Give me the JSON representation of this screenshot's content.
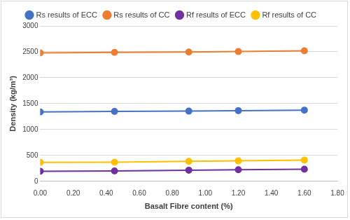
{
  "chart_data": {
    "type": "line",
    "x_label": "Basalt Fibre content (%)",
    "y_label": "Density (kg/m³)",
    "x": [
      0,
      0.45,
      0.9,
      1.2,
      1.6
    ],
    "series": [
      {
        "name": "Rs results of ECC",
        "color": "#4472c4",
        "marker": "circle",
        "line_style": "solid",
        "values": [
          1340,
          1350,
          1355,
          1365,
          1375
        ]
      },
      {
        "name": "Rs results of CC",
        "color": "#ed7d31",
        "marker": "circle",
        "line_style": "solid",
        "values": [
          2480,
          2490,
          2495,
          2505,
          2520
        ]
      },
      {
        "name": "Rf results of ECC",
        "color": "#7030a0",
        "marker": "circle",
        "line_style": "solid",
        "values": [
          195,
          200,
          215,
          225,
          235
        ]
      },
      {
        "name": "Rf results of CC",
        "color": "#ffc000",
        "marker": "circle",
        "line_style": "solid",
        "values": [
          365,
          370,
          385,
          395,
          410
        ]
      }
    ],
    "xlim": [
      0,
      1.8
    ],
    "xticks": [
      {
        "value": 0,
        "label": "0.00"
      },
      {
        "value": 0.2,
        "label": "0.20"
      },
      {
        "value": 0.4,
        "label": "0.40"
      },
      {
        "value": 0.6,
        "label": "0.60"
      },
      {
        "value": 0.8,
        "label": "0.80"
      },
      {
        "value": 1,
        "label": "1.00"
      },
      {
        "value": 1.2,
        "label": "1.20"
      },
      {
        "value": 1.4,
        "label": "1.40"
      },
      {
        "value": 1.6,
        "label": "1.60"
      },
      {
        "value": 1.8,
        "label": "1.80"
      }
    ],
    "ylim": [
      0,
      3000
    ],
    "yticks": [
      0,
      500,
      1000,
      1500,
      2000,
      2500,
      3000
    ],
    "grid": true,
    "legend": "top"
  }
}
